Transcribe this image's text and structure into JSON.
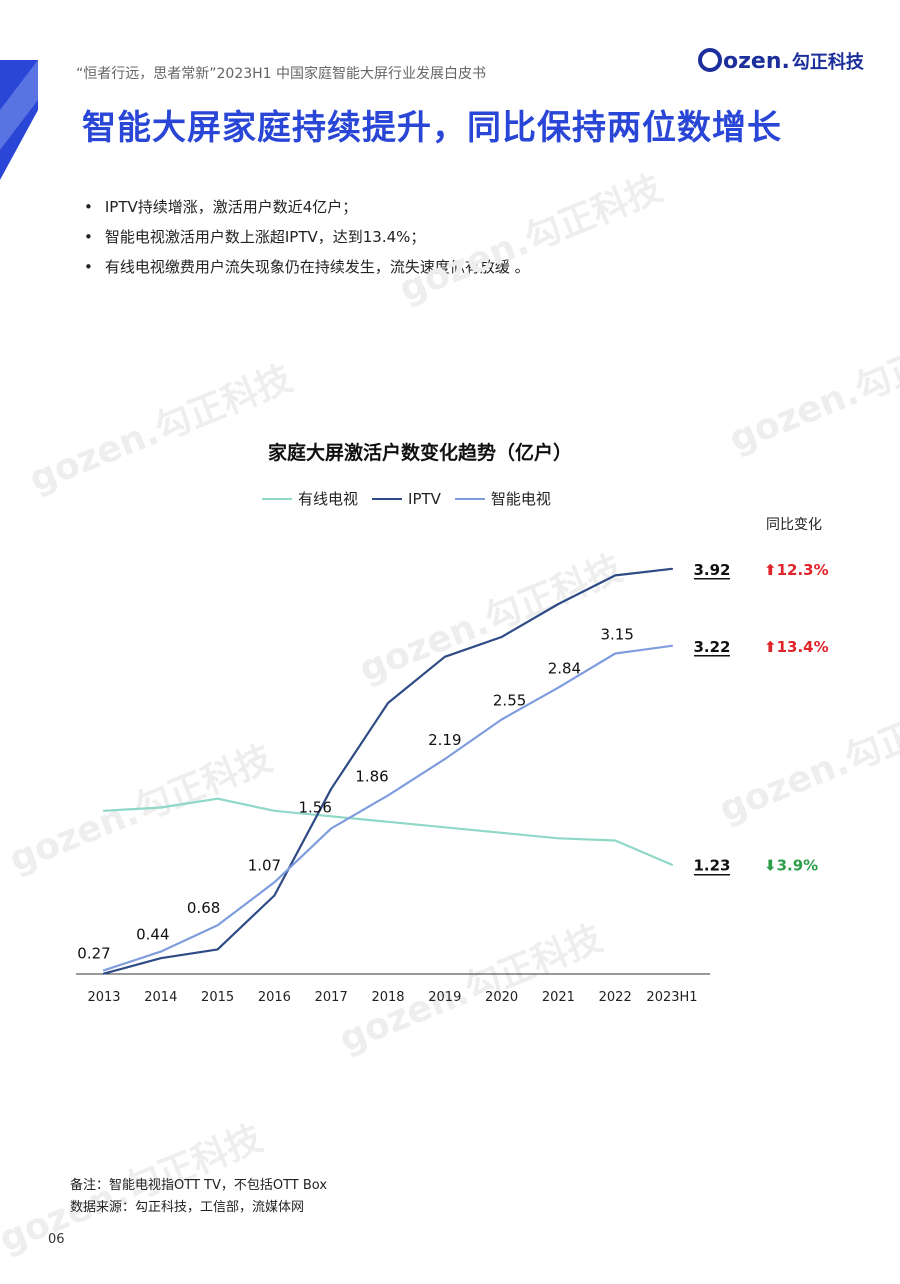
{
  "header": {
    "report_title": "“恒者行远，思者常新”2023H1  中国家庭智能大屏行业发展白皮书",
    "brand_text": "ozen.",
    "brand_cn": "勾正科技",
    "brand_color": "#1c2f9b"
  },
  "page_title": "智能大屏家庭持续提升，同比保持两位数增长",
  "bullets": [
    "IPTV持续增涨，激活用户数近4亿户；",
    "智能电视激活用户数上涨超IPTV，达到13.4%；",
    "有线电视缴费用户流失现象仍在持续发生，流失速度似有放缓 。"
  ],
  "watermark_text": "gozen.勾正科技",
  "chart_data": {
    "type": "line",
    "title": "家庭大屏激活户数变化趋势（亿户）",
    "categories": [
      "2013",
      "2014",
      "2015",
      "2016",
      "2017",
      "2018",
      "2019",
      "2020",
      "2021",
      "2022",
      "2023H1"
    ],
    "series": [
      {
        "name": "有线电视",
        "color": "#8fd8c8",
        "values": [
          1.72,
          1.75,
          1.83,
          1.72,
          1.67,
          1.62,
          1.57,
          1.52,
          1.47,
          1.45,
          1.23
        ]
      },
      {
        "name": "IPTV",
        "color": "#2e4b85",
        "values": [
          0.24,
          0.38,
          0.46,
          0.95,
          1.92,
          2.7,
          3.12,
          3.3,
          3.6,
          3.86,
          3.92
        ]
      },
      {
        "name": "智能电视",
        "color": "#7f9ddd",
        "values": [
          0.27,
          0.44,
          0.68,
          1.07,
          1.56,
          1.86,
          2.19,
          2.55,
          2.84,
          3.15,
          3.22
        ]
      }
    ],
    "data_labels_series": "智能电视",
    "data_labels": [
      "0.27",
      "0.44",
      "0.68",
      "1.07",
      "1.56",
      "1.86",
      "2.19",
      "2.55",
      "2.84",
      "3.15",
      "3.22"
    ],
    "end_values": [
      {
        "series": "IPTV",
        "value": "3.92",
        "yoy": "12.3%",
        "direction": "up",
        "color": "#e0242b"
      },
      {
        "series": "智能电视",
        "value": "3.22",
        "yoy": "13.4%",
        "direction": "up",
        "color": "#e0242b"
      },
      {
        "series": "有线电视",
        "value": "1.23",
        "yoy": "3.9%",
        "direction": "down",
        "color": "#2e9e4a"
      }
    ],
    "yoy_header": "同比变化",
    "ylim": [
      0,
      4.2
    ],
    "grid": false,
    "legend_position": "top-center"
  },
  "footnote": {
    "note": "备注：智能电视指OTT TV，不包括OTT Box",
    "source": "数据来源：勾正科技，工信部，流媒体网"
  },
  "page_number": "06"
}
